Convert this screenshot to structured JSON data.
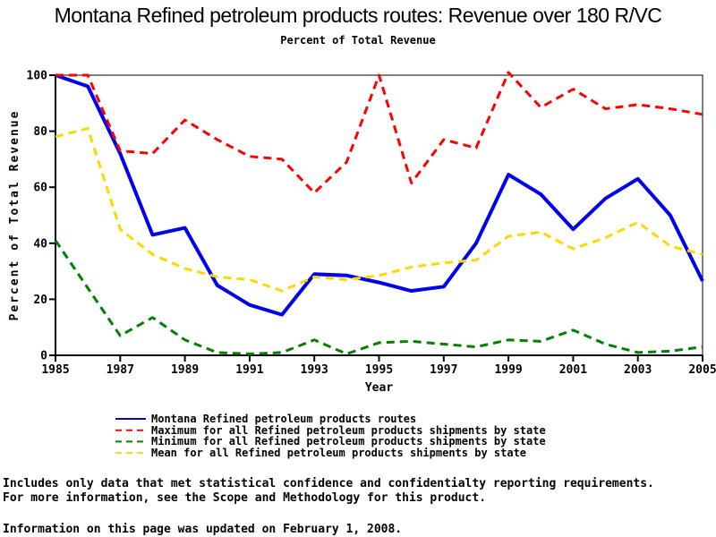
{
  "title": "Montana Refined petroleum products routes: Revenue over 180 R/VC",
  "subtitle": "Percent of Total Revenue",
  "chart_data": {
    "type": "line",
    "title": "Montana Refined petroleum products routes: Revenue over 180 R/VC",
    "subtitle": "Percent of Total Revenue",
    "xlabel": "Year",
    "ylabel": "Percent of Total Revenue",
    "xlim": [
      1985,
      2005
    ],
    "ylim": [
      0,
      100
    ],
    "x_ticks": [
      1985,
      1987,
      1989,
      1991,
      1993,
      1995,
      1997,
      1999,
      2001,
      2003,
      2005
    ],
    "y_ticks": [
      0,
      20,
      40,
      60,
      80,
      100
    ],
    "grid": false,
    "legend_position": "bottom",
    "x": [
      1985,
      1986,
      1987,
      1988,
      1989,
      1990,
      1991,
      1992,
      1993,
      1994,
      1995,
      1996,
      1997,
      1998,
      1999,
      2000,
      2001,
      2002,
      2003,
      2004,
      2005
    ],
    "series": [
      {
        "name": "Montana Refined petroleum products routes",
        "color": "#0000ee",
        "style": "solid",
        "width": 4,
        "values": [
          100,
          96,
          72,
          43,
          45.5,
          25,
          18,
          14.5,
          29,
          28.5,
          26,
          23,
          24.5,
          40,
          64.5,
          57.5,
          45,
          56,
          63,
          50,
          26.5
        ]
      },
      {
        "name": "Maximum for all Refined petroleum products shipments by state",
        "color": "#ff0000",
        "style": "dashed",
        "width": 3,
        "values": [
          100,
          100,
          73,
          72,
          84,
          77,
          71,
          70,
          58,
          69,
          100,
          61.5,
          77,
          74,
          101,
          88.5,
          95,
          88,
          89.5,
          88,
          86
        ]
      },
      {
        "name": "Minimum for all Refined petroleum products shipments by state",
        "color": "#008000",
        "style": "dashed",
        "width": 3,
        "values": [
          41,
          24,
          7,
          13.5,
          5.5,
          1,
          0.5,
          1,
          5.5,
          0.5,
          4.5,
          5,
          4,
          3,
          5.5,
          5,
          9,
          4,
          1,
          1.5,
          3
        ]
      },
      {
        "name": "Mean for all Refined petroleum products shipments by state",
        "color": "#ffd700",
        "style": "dashed",
        "width": 3,
        "values": [
          78,
          81,
          45,
          36,
          31,
          28,
          27,
          23,
          28,
          27,
          28.5,
          31.5,
          33,
          34,
          42.5,
          44,
          38,
          42,
          47.5,
          39,
          36
        ]
      }
    ]
  },
  "footer": {
    "line1": "Includes only data that met statistical confidence and confidentialty reporting requirements.",
    "line2": "For more information, see the Scope and Methodology for this product.",
    "updated": "Information on this page was updated on February 1, 2008."
  }
}
